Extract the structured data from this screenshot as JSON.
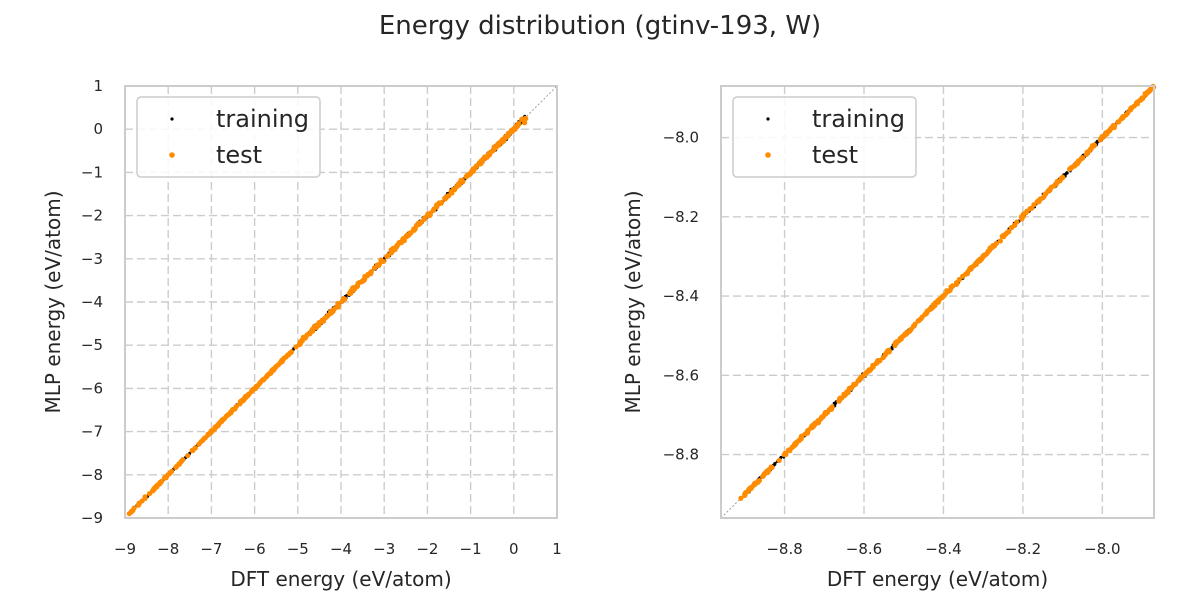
{
  "figure": {
    "suptitle": "Energy distribution (gtinv-193, W)"
  },
  "colors": {
    "training": "#000000",
    "test": "#ff8c00",
    "grid": "#cccccc",
    "diag": "#999999"
  },
  "chart_data": [
    {
      "type": "scatter",
      "xlabel": "DFT energy (eV/atom)",
      "ylabel": "MLP energy (eV/atom)",
      "xlim": [
        -9,
        1
      ],
      "ylim": [
        -9,
        1
      ],
      "xticks": [
        -9,
        -8,
        -7,
        -6,
        -5,
        -4,
        -3,
        -2,
        -1,
        0,
        1
      ],
      "yticks": [
        -9,
        -8,
        -7,
        -6,
        -5,
        -4,
        -3,
        -2,
        -1,
        0,
        1
      ],
      "xtick_labels": [
        "−9",
        "−8",
        "−7",
        "−6",
        "−5",
        "−4",
        "−3",
        "−2",
        "−1",
        "0",
        "1"
      ],
      "ytick_labels": [
        "−9",
        "−8",
        "−7",
        "−6",
        "−5",
        "−4",
        "−3",
        "−2",
        "−1",
        "0",
        "1"
      ],
      "grid": true,
      "legend_position": "top-left",
      "diagonal": "y=x dotted",
      "series": [
        {
          "name": "training",
          "marker": "small dot",
          "x_range": [
            -8.9,
            0.3
          ],
          "points": [
            [
              -8.9,
              -8.9
            ],
            [
              -8.5,
              -8.5
            ],
            [
              -8.0,
              -8.0
            ],
            [
              -7.5,
              -7.5
            ],
            [
              -7.0,
              -7.0
            ],
            [
              -6.5,
              -6.5
            ],
            [
              -6.0,
              -6.0
            ],
            [
              -5.5,
              -5.5
            ],
            [
              -5.0,
              -5.0
            ],
            [
              -4.6,
              -4.6
            ],
            [
              -4.2,
              -4.2
            ],
            [
              -3.6,
              -3.6
            ],
            [
              -3.2,
              -3.2
            ],
            [
              -2.8,
              -2.8
            ],
            [
              -2.2,
              -2.2
            ],
            [
              -1.6,
              -1.6
            ],
            [
              -1.0,
              -1.0
            ],
            [
              -0.6,
              -0.55
            ],
            [
              -0.3,
              -0.3
            ],
            [
              0.1,
              0.05
            ]
          ]
        },
        {
          "name": "test",
          "marker": "dot",
          "x_range": [
            -8.9,
            0.3
          ],
          "points": [
            [
              -8.9,
              -8.9
            ],
            [
              -8.3,
              -8.3
            ],
            [
              -7.8,
              -7.8
            ],
            [
              -7.2,
              -7.2
            ],
            [
              -6.6,
              -6.6
            ],
            [
              -6.0,
              -6.0
            ],
            [
              -5.4,
              -5.4
            ],
            [
              -4.9,
              -4.9
            ],
            [
              -4.2,
              -4.2
            ],
            [
              -3.8,
              -3.8
            ],
            [
              -3.3,
              -3.3
            ],
            [
              -2.7,
              -2.7
            ],
            [
              -2.2,
              -2.2
            ],
            [
              -1.6,
              -1.6
            ],
            [
              -1.1,
              -1.1
            ],
            [
              -0.6,
              -0.6
            ],
            [
              -0.2,
              -0.2
            ],
            [
              0.25,
              0.15
            ]
          ]
        }
      ]
    },
    {
      "type": "scatter",
      "xlabel": "DFT energy (eV/atom)",
      "ylabel": "MLP energy (eV/atom)",
      "xlim": [
        -8.96,
        -7.87
      ],
      "ylim": [
        -8.96,
        -7.87
      ],
      "xticks": [
        -8.8,
        -8.6,
        -8.4,
        -8.2,
        -8.0
      ],
      "yticks": [
        -8.8,
        -8.6,
        -8.4,
        -8.2,
        -8.0
      ],
      "xtick_labels": [
        "−8.8",
        "−8.6",
        "−8.4",
        "−8.2",
        "−8.0"
      ],
      "ytick_labels": [
        "−8.8",
        "−8.6",
        "−8.4",
        "−8.2",
        "−8.0"
      ],
      "grid": true,
      "legend_position": "top-left",
      "diagonal": "y=x dotted",
      "series": [
        {
          "name": "training",
          "marker": "small dot",
          "x_range": [
            -8.9,
            -7.87
          ],
          "points": [
            [
              -8.8,
              -8.8
            ],
            [
              -8.7,
              -8.7
            ],
            [
              -8.6,
              -8.6
            ],
            [
              -8.5,
              -8.5
            ],
            [
              -8.4,
              -8.4
            ],
            [
              -8.3,
              -8.3
            ],
            [
              -8.2,
              -8.2
            ],
            [
              -8.1,
              -8.1
            ],
            [
              -8.0,
              -8.0
            ],
            [
              -7.9,
              -7.9
            ]
          ]
        },
        {
          "name": "test",
          "marker": "dot",
          "x_range": [
            -8.91,
            -7.87
          ],
          "points": [
            [
              -8.9,
              -8.9
            ],
            [
              -8.8,
              -8.8
            ],
            [
              -8.7,
              -8.7
            ],
            [
              -8.6,
              -8.6
            ],
            [
              -8.5,
              -8.5
            ],
            [
              -8.4,
              -8.4
            ],
            [
              -8.3,
              -8.3
            ],
            [
              -8.2,
              -8.2
            ],
            [
              -8.1,
              -8.1
            ],
            [
              -8.0,
              -8.0
            ],
            [
              -7.9,
              -7.9
            ]
          ]
        }
      ]
    }
  ]
}
